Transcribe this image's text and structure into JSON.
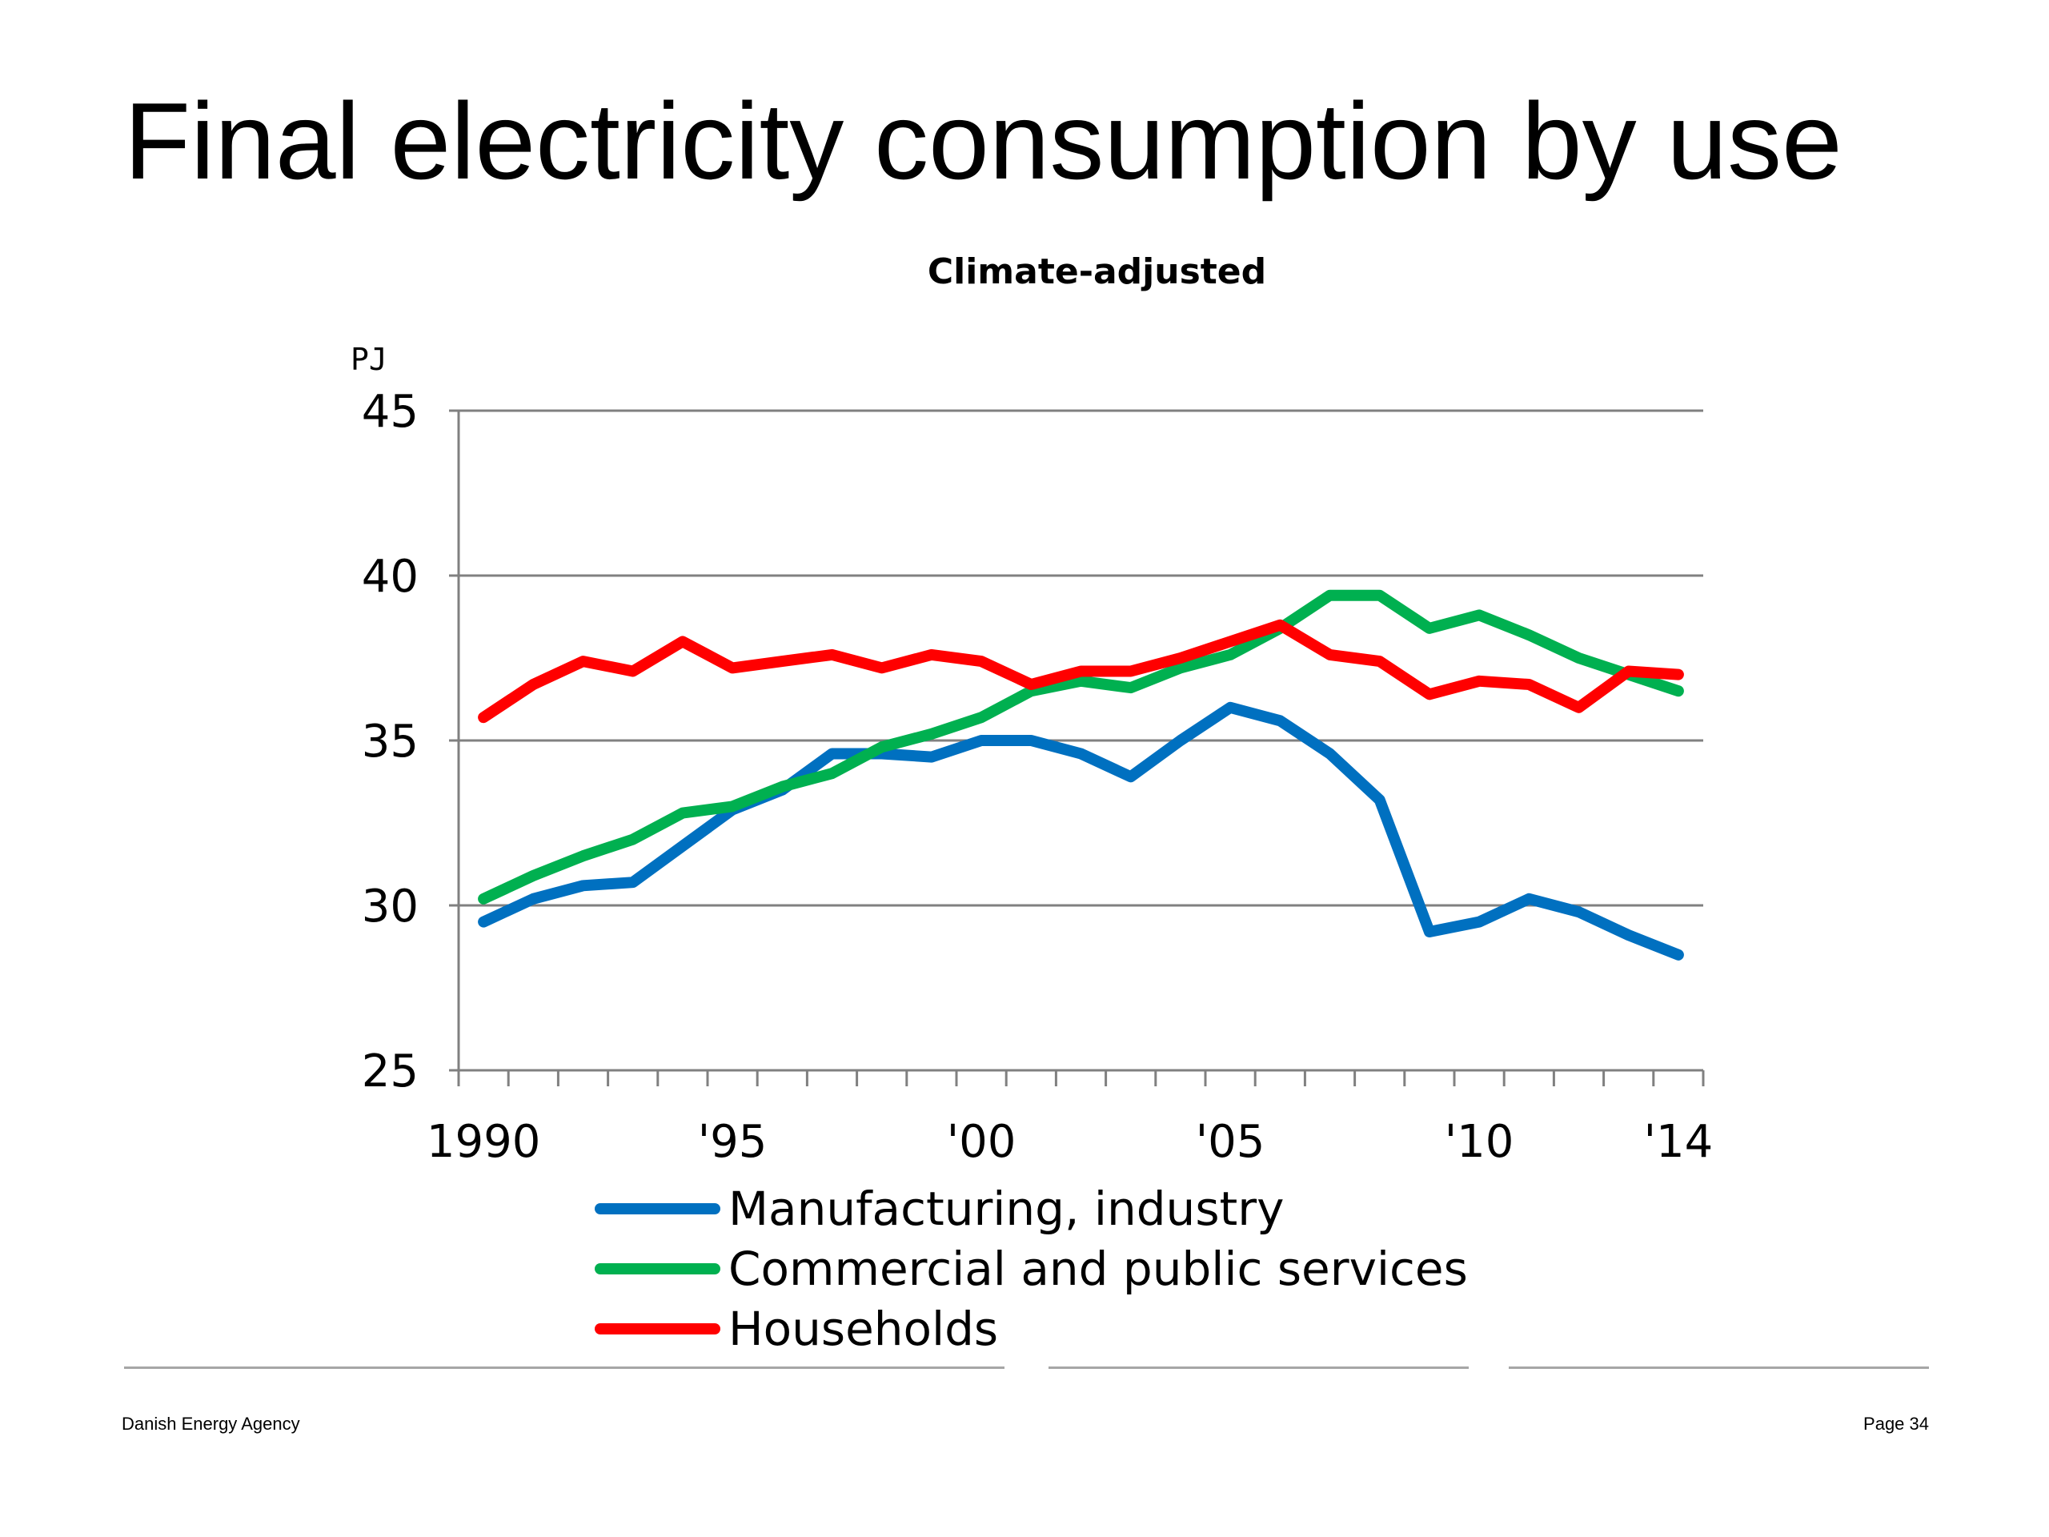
{
  "slide": {
    "title": "Final electricity consumption by use",
    "footer_left": "Danish Energy Agency",
    "footer_right": "Page 34"
  },
  "chart_data": {
    "type": "line",
    "title": "Climate-adjusted",
    "ylabel": "PJ",
    "xlabel": "",
    "ylim": [
      25,
      45
    ],
    "yticks": [
      25,
      30,
      35,
      40,
      45
    ],
    "xlim": [
      1989.5,
      2014.5
    ],
    "x": [
      1990,
      1991,
      1992,
      1993,
      1994,
      1995,
      1996,
      1997,
      1998,
      1999,
      2000,
      2001,
      2002,
      2003,
      2004,
      2005,
      2006,
      2007,
      2008,
      2009,
      2010,
      2011,
      2012,
      2013,
      2014
    ],
    "xtick_labels": [
      {
        "x": 1990,
        "label": "1990"
      },
      {
        "x": 1995,
        "label": "'95"
      },
      {
        "x": 2000,
        "label": "'00"
      },
      {
        "x": 2005,
        "label": "'05"
      },
      {
        "x": 2010,
        "label": "'10"
      },
      {
        "x": 2014,
        "label": "'14"
      }
    ],
    "grid": true,
    "legend_position": "bottom",
    "series": [
      {
        "name": "Manufacturing, industry",
        "color": "#0070C0",
        "values": [
          29.5,
          30.2,
          30.6,
          30.7,
          31.8,
          32.9,
          33.5,
          34.6,
          34.6,
          34.5,
          35.0,
          35.0,
          34.6,
          33.9,
          35.0,
          36.0,
          35.6,
          34.6,
          33.2,
          29.2,
          29.5,
          30.2,
          29.8,
          29.1,
          28.5
        ]
      },
      {
        "name": "Commercial and public services",
        "color": "#00B050",
        "values": [
          30.2,
          30.9,
          31.5,
          32.0,
          32.8,
          33.0,
          33.6,
          34.0,
          34.8,
          35.2,
          35.7,
          36.5,
          36.8,
          36.6,
          37.2,
          37.6,
          38.4,
          39.4,
          39.4,
          38.4,
          38.8,
          38.2,
          37.5,
          37.0,
          36.5
        ]
      },
      {
        "name": "Households",
        "color": "#FF0000",
        "values": [
          35.7,
          36.7,
          37.4,
          37.1,
          38.0,
          37.2,
          37.4,
          37.6,
          37.2,
          37.6,
          37.4,
          36.7,
          37.1,
          37.1,
          37.5,
          38.0,
          38.5,
          37.6,
          37.4,
          36.4,
          36.8,
          36.7,
          36.0,
          37.1,
          37.0
        ]
      }
    ]
  }
}
